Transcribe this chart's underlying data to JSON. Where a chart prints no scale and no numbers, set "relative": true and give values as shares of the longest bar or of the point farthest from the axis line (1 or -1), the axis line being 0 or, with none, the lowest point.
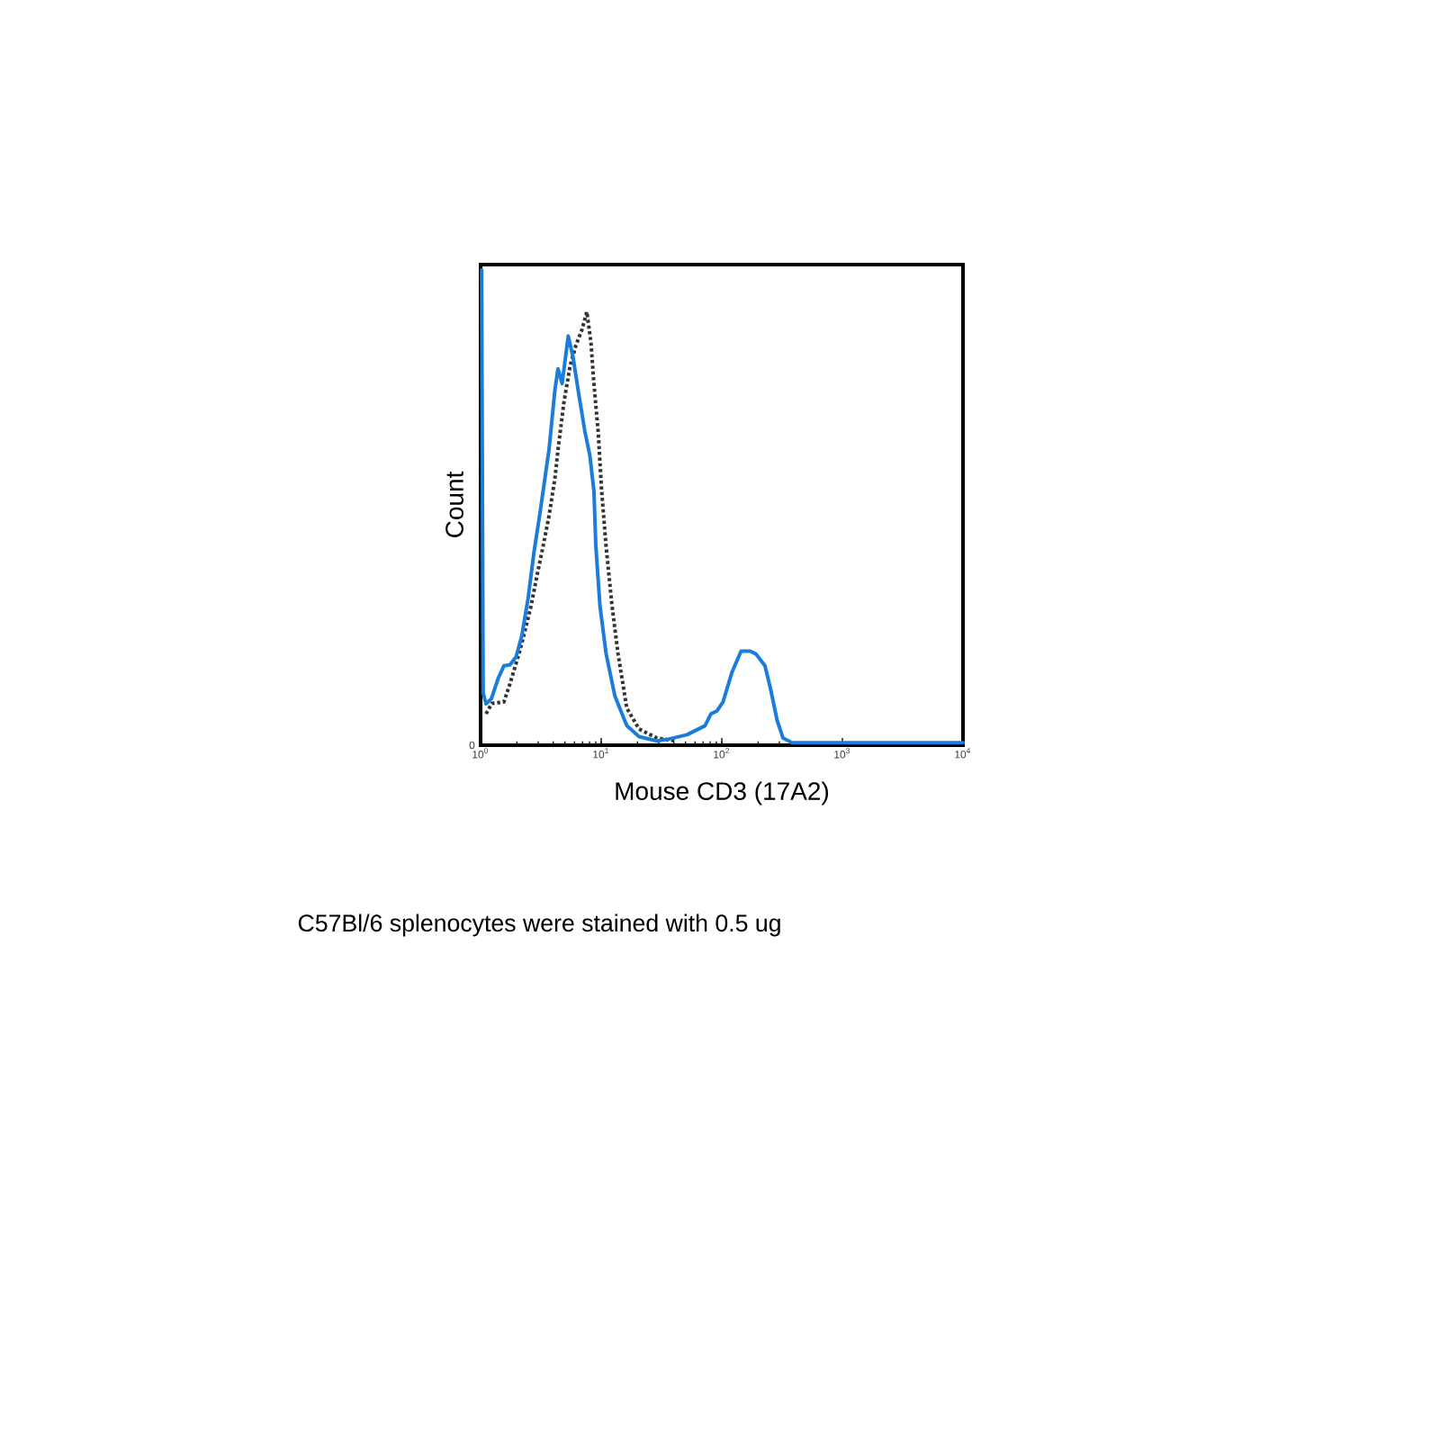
{
  "chart_data": {
    "type": "line",
    "xlabel": "Mouse CD3 (17A2)",
    "ylabel": "Count",
    "annotations": [
      "0",
      "C57Bl/6 splenocytes were stained with 0.5 ug"
    ],
    "relative": true,
    "log": "x",
    "marker": "none",
    "xlim": [
      1,
      10000
    ],
    "xticks": [
      {
        "value": 1,
        "label": "10$^{0}$"
      },
      {
        "value": 10,
        "label": "10$^{1}$"
      },
      {
        "value": 100,
        "label": "10$^{2}$"
      },
      {
        "value": 1000,
        "label": "10$^{3}$"
      },
      {
        "value": 10000,
        "label": "10$^{4}$"
      }
    ],
    "series": [
      {
        "color": "#333333",
        "line_style": "dotted",
        "x": [
          1.11,
          1.24,
          1.56,
          1.75,
          2.08,
          2.34,
          2.62,
          2.93,
          3.3,
          3.69,
          4.13,
          4.38,
          4.91,
          5.52,
          6.18,
          6.92,
          7.6,
          8.22,
          8.71,
          9.44,
          10.1,
          10.97,
          12.3,
          13.8,
          16.3,
          20.6,
          29.0,
          40.9
        ],
        "values": [
          0.066,
          0.088,
          0.091,
          0.129,
          0.192,
          0.242,
          0.293,
          0.356,
          0.419,
          0.482,
          0.561,
          0.621,
          0.722,
          0.798,
          0.842,
          0.874,
          0.912,
          0.848,
          0.76,
          0.659,
          0.533,
          0.419,
          0.293,
          0.192,
          0.078,
          0.034,
          0.015,
          0.009
        ]
      },
      {
        "color": "#1b7ddb",
        "line_style": "solid",
        "x": [
          1.02,
          1.05,
          1.11,
          1.23,
          1.4,
          1.56,
          1.75,
          1.97,
          2.2,
          2.47,
          2.77,
          3.11,
          3.48,
          3.69,
          4.13,
          4.38,
          4.74,
          5.33,
          5.83,
          6.55,
          7.34,
          8.05,
          8.71,
          9.02,
          9.77,
          10.97,
          13.0,
          16.3,
          20.6,
          29.0,
          36.5,
          51.5,
          72.6,
          81.3,
          91.2,
          102.4,
          121.6,
          144.5,
          171.5,
          192.2,
          228,
          255,
          287,
          322,
          382,
          10000
        ],
        "values": [
          1.0,
          0.11,
          0.087,
          0.098,
          0.141,
          0.167,
          0.169,
          0.186,
          0.231,
          0.307,
          0.406,
          0.489,
          0.576,
          0.621,
          0.747,
          0.792,
          0.761,
          0.861,
          0.818,
          0.735,
          0.659,
          0.61,
          0.534,
          0.42,
          0.293,
          0.193,
          0.103,
          0.041,
          0.018,
          0.009,
          0.013,
          0.022,
          0.041,
          0.066,
          0.072,
          0.091,
          0.154,
          0.198,
          0.198,
          0.192,
          0.167,
          0.116,
          0.053,
          0.015,
          0.005,
          0.005
        ]
      }
    ]
  }
}
